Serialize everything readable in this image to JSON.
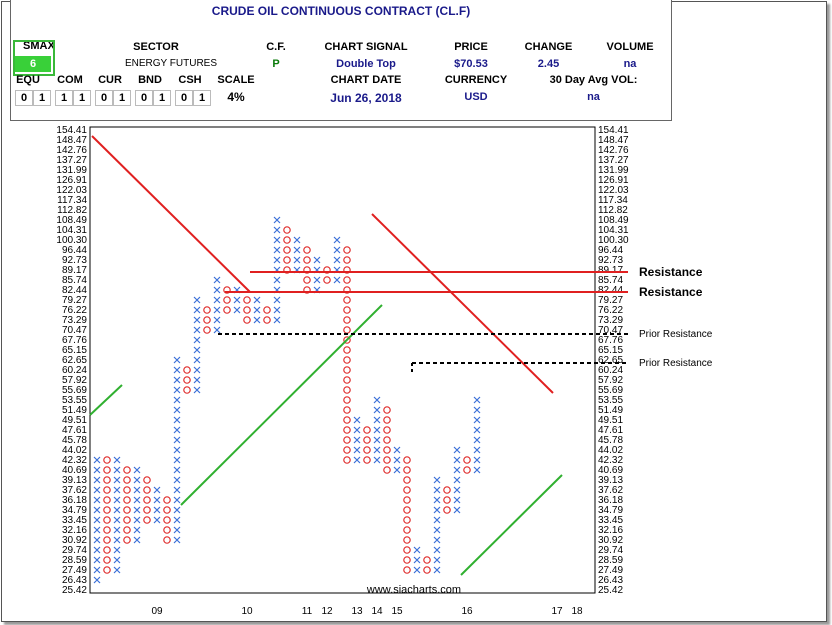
{
  "header": {
    "title": "CRUDE OIL CONTINUOUS CONTRACT (CL.F)",
    "smax_label": "SMAX",
    "smax_value": "6",
    "sector_label": "SECTOR",
    "sector_value": "ENERGY FUTURES",
    "cf_label": "C.F.",
    "cf_value": "P",
    "signal_label": "CHART SIGNAL",
    "signal_value": "Double Top",
    "price_label": "PRICE",
    "price_value": "$70.53",
    "change_label": "CHANGE",
    "change_value": "2.45",
    "volume_label": "VOLUME",
    "volume_value": "na",
    "equ_label": "EQU",
    "com_label": "COM",
    "cur_label": "CUR",
    "bnd_label": "BND",
    "csh_label": "CSH",
    "scale_label": "SCALE",
    "scale_value": "4%",
    "date_label": "CHART DATE",
    "date_value": "Jun 26, 2018",
    "currency_label": "CURRENCY",
    "currency_value": "USD",
    "avgvol_label": "30 Day Avg VOL:",
    "avgvol_value": "na",
    "asset_class_values": [
      "0",
      "1",
      "1",
      "1",
      "0",
      "1",
      "0",
      "1",
      "0",
      "1"
    ]
  },
  "chart_data": {
    "type": "point-and-figure",
    "y_labels": [
      "154.41",
      "148.47",
      "142.76",
      "137.27",
      "131.99",
      "126.91",
      "122.03",
      "117.34",
      "112.82",
      "108.49",
      "104.31",
      "100.30",
      "96.44",
      "92.73",
      "89.17",
      "85.74",
      "82.44",
      "79.27",
      "76.22",
      "73.29",
      "70.47",
      "67.76",
      "65.15",
      "62.65",
      "60.24",
      "57.92",
      "55.69",
      "53.55",
      "51.49",
      "49.51",
      "47.61",
      "45.78",
      "44.02",
      "42.32",
      "40.69",
      "39.13",
      "37.62",
      "36.18",
      "34.79",
      "33.45",
      "32.16",
      "30.92",
      "29.74",
      "28.59",
      "27.49",
      "26.43",
      "25.42"
    ],
    "x_labels": [
      {
        "label": "09",
        "col": 6
      },
      {
        "label": "10",
        "col": 15
      },
      {
        "label": "11",
        "col": 21
      },
      {
        "label": "12",
        "col": 23
      },
      {
        "label": "13",
        "col": 26
      },
      {
        "label": "14",
        "col": 28
      },
      {
        "label": "15",
        "col": 30
      },
      {
        "label": "16",
        "col": 37
      },
      {
        "label": "17",
        "col": 46
      },
      {
        "label": "18",
        "col": 48
      }
    ],
    "columns": [
      {
        "type": "X",
        "from": 1,
        "to": 13
      },
      {
        "type": "O",
        "from": 13,
        "to": 2
      },
      {
        "type": "X",
        "from": 2,
        "to": 13
      },
      {
        "type": "O",
        "from": 12,
        "to": 5
      },
      {
        "type": "X",
        "from": 5,
        "to": 12
      },
      {
        "type": "O",
        "from": 11,
        "to": 7
      },
      {
        "type": "X",
        "from": 7,
        "to": 10
      },
      {
        "type": "O",
        "from": 9,
        "to": 5
      },
      {
        "type": "X",
        "from": 5,
        "to": 23
      },
      {
        "type": "O",
        "from": 22,
        "to": 20
      },
      {
        "type": "X",
        "from": 20,
        "to": 29
      },
      {
        "type": "O",
        "from": 28,
        "to": 26
      },
      {
        "type": "X",
        "from": 26,
        "to": 31
      },
      {
        "type": "O",
        "from": 30,
        "to": 28
      },
      {
        "type": "X",
        "from": 28,
        "to": 30
      },
      {
        "type": "O",
        "from": 29,
        "to": 27
      },
      {
        "type": "X",
        "from": 27,
        "to": 29
      },
      {
        "type": "O",
        "from": 28,
        "to": 27
      },
      {
        "type": "X",
        "from": 27,
        "to": 37
      },
      {
        "type": "O",
        "from": 36,
        "to": 32
      },
      {
        "type": "X",
        "from": 32,
        "to": 35
      },
      {
        "type": "O",
        "from": 34,
        "to": 30
      },
      {
        "type": "X",
        "from": 30,
        "to": 33
      },
      {
        "type": "O",
        "from": 32,
        "to": 31
      },
      {
        "type": "X",
        "from": 31,
        "to": 35
      },
      {
        "type": "O",
        "from": 34,
        "to": 13
      },
      {
        "type": "X",
        "from": 13,
        "to": 17
      },
      {
        "type": "O",
        "from": 16,
        "to": 13
      },
      {
        "type": "X",
        "from": 13,
        "to": 19
      },
      {
        "type": "O",
        "from": 18,
        "to": 12
      },
      {
        "type": "X",
        "from": 12,
        "to": 14
      },
      {
        "type": "O",
        "from": 13,
        "to": 2
      },
      {
        "type": "X",
        "from": 2,
        "to": 4
      },
      {
        "type": "O",
        "from": 3,
        "to": 2
      },
      {
        "type": "X",
        "from": 2,
        "to": 11
      },
      {
        "type": "O",
        "from": 10,
        "to": 8
      },
      {
        "type": "X",
        "from": 8,
        "to": 14
      },
      {
        "type": "O",
        "from": 13,
        "to": 12
      },
      {
        "type": "X",
        "from": 12,
        "to": 19
      }
    ],
    "resistance_lines": [
      {
        "label": "Resistance",
        "value": "89.17"
      },
      {
        "label": "Resistance",
        "value": "82.44"
      },
      {
        "label": "Prior Resistance",
        "value": "70.47"
      },
      {
        "label": "Prior Resistance",
        "value": "62.65"
      }
    ],
    "watermark": "www.siacharts.com"
  }
}
